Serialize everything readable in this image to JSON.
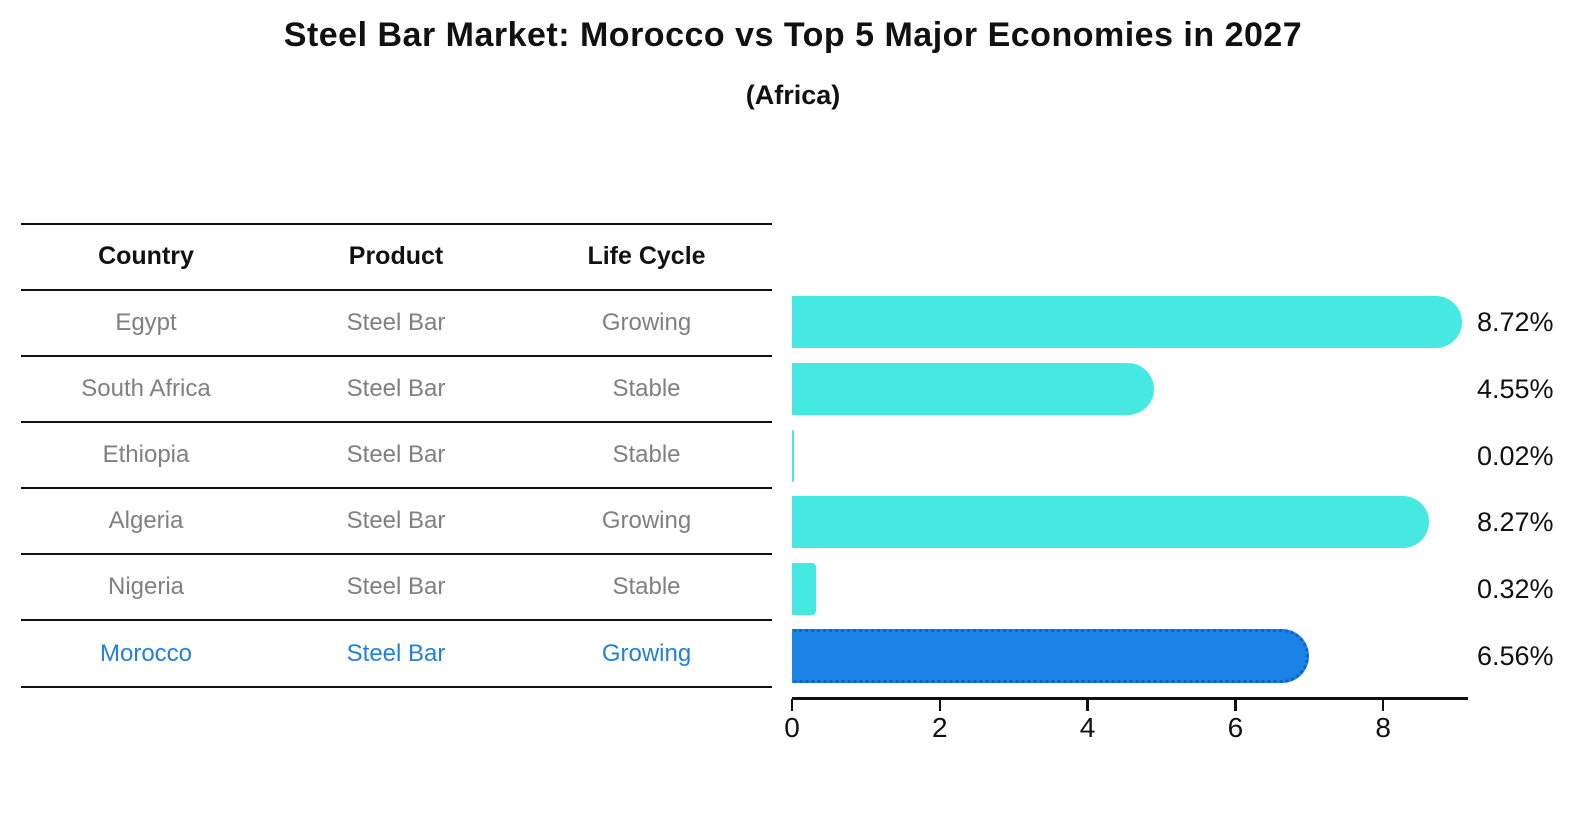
{
  "title": "Steel Bar Market: Morocco vs Top 5 Major Economies in 2027",
  "subtitle": "(Africa)",
  "table": {
    "columns": [
      "Country",
      "Product",
      "Life Cycle"
    ],
    "rows": [
      {
        "country": "Egypt",
        "product": "Steel Bar",
        "life_cycle": "Growing",
        "highlight": false
      },
      {
        "country": "South Africa",
        "product": "Steel Bar",
        "life_cycle": "Stable",
        "highlight": false
      },
      {
        "country": "Ethiopia",
        "product": "Steel Bar",
        "life_cycle": "Stable",
        "highlight": false
      },
      {
        "country": "Algeria",
        "product": "Steel Bar",
        "life_cycle": "Growing",
        "highlight": false
      },
      {
        "country": "Nigeria",
        "product": "Steel Bar",
        "life_cycle": "Stable",
        "highlight": false
      },
      {
        "country": "Morocco",
        "product": "Steel Bar",
        "life_cycle": "Growing",
        "highlight": true
      }
    ]
  },
  "chart_data": {
    "type": "bar",
    "orientation": "horizontal",
    "title": "Steel Bar Market: Morocco vs Top 5 Major Economies in 2027 (Africa)",
    "categories": [
      "Egypt",
      "South Africa",
      "Ethiopia",
      "Algeria",
      "Nigeria",
      "Morocco"
    ],
    "values": [
      8.72,
      4.55,
      0.02,
      8.27,
      0.32,
      6.56
    ],
    "value_labels": [
      "8.72%",
      "4.55%",
      "0.02%",
      "8.27%",
      "0.32%",
      "6.56%"
    ],
    "x_ticks": [
      "0",
      "2",
      "4",
      "6",
      "8"
    ],
    "x_tick_values": [
      0,
      2,
      4,
      6,
      8
    ],
    "xlim": [
      0,
      9.16
    ],
    "grid": false,
    "legend": false,
    "bar_color": "#46e8e2",
    "highlight_color": "#1b82e8",
    "highlight_index": 5,
    "highlight_border_style": "dotted"
  },
  "colors": {
    "text": "#111111",
    "muted_text": "#808080",
    "accent_blue": "#2580d9",
    "bar_cyan": "#46e8e2",
    "bar_blue": "#1b82e8",
    "rule": "#111111"
  }
}
